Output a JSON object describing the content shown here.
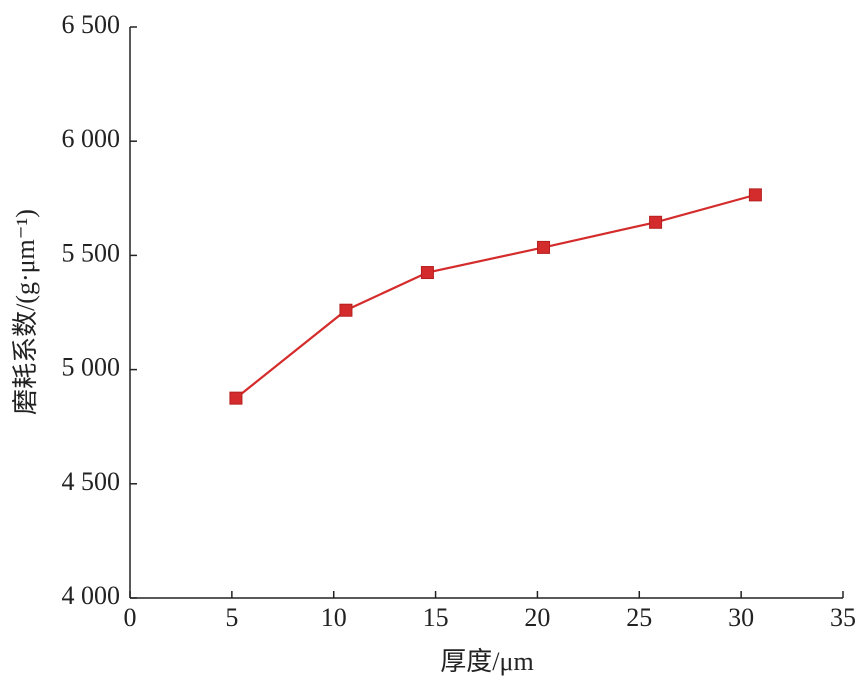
{
  "chart_data": {
    "type": "line",
    "x_label": "厚度/μm",
    "y_label": "磨耗系数/(g·μm⁻¹)",
    "xlim": [
      0,
      35
    ],
    "xticks": [
      0,
      5,
      10,
      15,
      20,
      25,
      30,
      35
    ],
    "ylim": [
      4000,
      6500
    ],
    "yticks": [
      {
        "value": 4000,
        "label": "4 000"
      },
      {
        "value": 4500,
        "label": "4 500"
      },
      {
        "value": 5000,
        "label": "5 000"
      },
      {
        "value": 5500,
        "label": "5 500"
      },
      {
        "value": 6000,
        "label": "6 000"
      },
      {
        "value": 6500,
        "label": "6 500"
      }
    ],
    "grid": false,
    "series": [
      {
        "color": "#d42c2c",
        "marker": "square",
        "x": [
          5.2,
          10.6,
          14.6,
          20.3,
          25.8,
          30.7
        ],
        "values": [
          4875,
          5260,
          5425,
          5535,
          5645,
          5765
        ]
      }
    ]
  }
}
